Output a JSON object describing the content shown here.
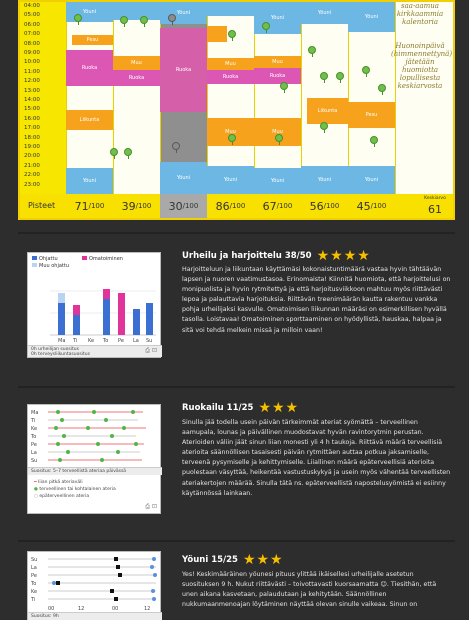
{
  "calendar": {
    "times": [
      "04:00",
      "05:00",
      "06:00",
      "07:00",
      "08:00",
      "09:00",
      "10:00",
      "11:00",
      "12:00",
      "13:00",
      "14:00",
      "15:00",
      "16:00",
      "17:00",
      "18:00",
      "19:00",
      "20:00",
      "21:00",
      "22:00",
      "23:00"
    ],
    "side_note_top": "saa-aamua kirkkaammia kalentoria",
    "side_note": "Huonoinpäivä (himmennettynä) jätetään huomiotta lopullisesta keskiarvosta",
    "events": {
      "yo": "Yöuni",
      "ruoka": "Ruoka",
      "pesu": "Pesu",
      "muu": "Muu",
      "liikunta": "Liikunta"
    },
    "score_label": "Pisteet",
    "scores": [
      {
        "value": "71",
        "suffix": "/100"
      },
      {
        "value": "39",
        "suffix": "/100"
      },
      {
        "value": "30",
        "suffix": "/100"
      },
      {
        "value": "86",
        "suffix": "/100"
      },
      {
        "value": "67",
        "suffix": "/100"
      },
      {
        "value": "56",
        "suffix": "/100"
      },
      {
        "value": "45",
        "suffix": "/100"
      }
    ],
    "total_label": "Keskiarvo",
    "total_value": "61",
    "colors": {
      "calendar_yellow": "#f6e600",
      "sleep": "#6cb7e3",
      "food": "#f6a21d",
      "other": "#dc57b3",
      "dark_day": "#8f8f8f"
    }
  },
  "sections": [
    {
      "title": "Urheilu ja harjoittelu 38/50",
      "stars": "★★★★",
      "text": "Harjoitteluun ja liikuntaan käyttämäsi kokonaistuntimäärä vastaa hyvin tähtäävän lapsen ja nuoren vaatimustasoa. Erinomaista! Kiinnitä huomiota, että harjoittelusi on monipuolista ja hyvin rytmitettyä ja että harjoitusviikkoon mahtuu myös riittävästi lepoa ja palauttavia harjoituksia. Riittävän treenimäärän kautta rakentuu vankka pohja urheilijaksi kasvulle. Omatoimisen liikunnan määräsi on esimerkillisen hyvällä tasolla. Loistavaa! Omatoiminen sporttaaminen on hyödyllistä, hauskaa, halpaa ja sitä voi tehdä melkein missä ja milloin vaan!",
      "legend": [
        "Ohjattu",
        "Omatoiminen",
        "Muu ohjattu"
      ],
      "days": [
        "Ma",
        "Ti",
        "Ke",
        "To",
        "Pe",
        "La",
        "Su"
      ],
      "caption": "0h urheilijan suositus\n0h terveysliikuntasuositus"
    },
    {
      "title": "Ruokailu 11/25",
      "stars": "★★★",
      "text": "Sinulla jää todella usein päivän tärkeimmät ateriat syömättä – terveellinen aamupala, lounas ja päivällinen muodostavat hyvän ravintorytmin perustan. Aterioiden väliin jäät sinun liian monesti yli 4 h taukoja. Riittävä määrä terveellisiä aterioita säännöllisen tasaisesti päivän rytmittäen auttaa potkua jaksamiselle, terveenä pysymiselle ja kehittymiselle. Liiallinen määrä epäterveellisiä aterioita puolestaan väsyttää, heikentää vastustuskykyä ja usein myös vähentää terveellisten ateriakertojen määrää. Sinulla tätä ns. epäterveellistä napostelusyömistä ei esiinny käytännössä lainkaan.",
      "days": [
        "Ma",
        "Ti",
        "Ke",
        "To",
        "Pe",
        "La",
        "Su"
      ],
      "caption": "Suositus: 5–7 terveellistä ateriaa päivässä",
      "legend": [
        "liian pitkä ateriaväli",
        "terveellinen tai kohtalainen ateria",
        "epäterveellinen ateria"
      ]
    },
    {
      "title": "Yöuni 15/25",
      "stars": "★★★",
      "text": "Yes! Keskimääräinen yöunesi pituus ylittää ikäisellesi urheilijalle asetetun suosituksen 9 h. Nukut riittävästi – toivottavasti kuorsaamatta ☺. Tiesithän, että unen aikana kasvetaan, palaudutaan ja kehitytään. Säännöllinen nukkumaanmenoajan löytäminen näyttää olevan sinulle vaikeaa. Sinun on",
      "days": [
        "Su",
        "La",
        "Pe",
        "To",
        "Ke",
        "Ti"
      ],
      "axis": [
        "00",
        "12",
        "00",
        "12"
      ],
      "caption": "Suositus: 9h"
    }
  ]
}
